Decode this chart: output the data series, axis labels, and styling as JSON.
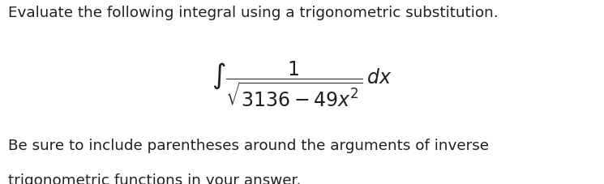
{
  "bg_color": "#ffffff",
  "text_color": "#231f20",
  "line1": "Evaluate the following integral using a trigonometric substitution.",
  "line3": "Be sure to include parentheses around the arguments of inverse",
  "line4": "trigonometric functions in your answer.",
  "integral_latex": "$\\int \\dfrac{1}{\\sqrt{3136-49x^2}}\\, dx$",
  "figsize": [
    7.45,
    2.28
  ],
  "dpi": 100
}
